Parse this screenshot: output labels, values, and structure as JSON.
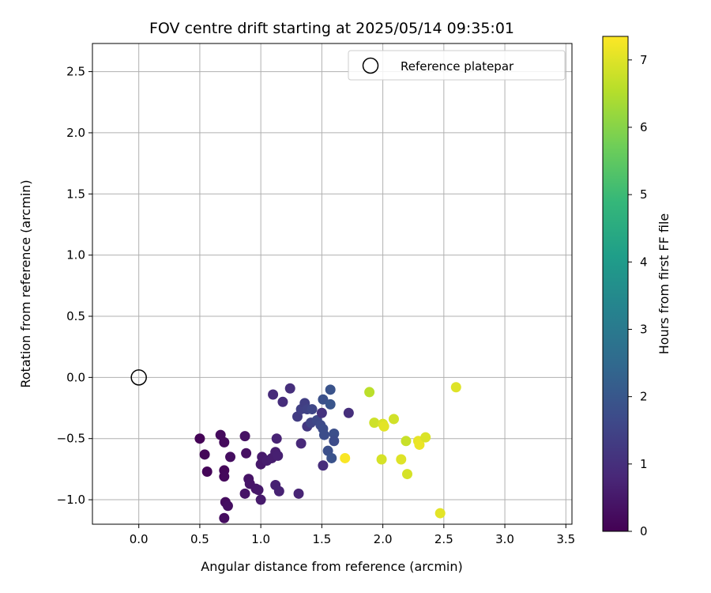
{
  "chart_data": {
    "type": "scatter",
    "title": "FOV centre drift starting at 2025/05/14 09:35:01",
    "xlabel": "Angular distance from reference (arcmin)",
    "ylabel": "Rotation from reference (arcmin)",
    "xlim": [
      -0.38,
      3.55
    ],
    "ylim": [
      -1.2,
      2.73
    ],
    "x_ticks": [
      "0.0",
      "0.5",
      "1.0",
      "1.5",
      "2.0",
      "2.5",
      "3.0",
      "3.5"
    ],
    "y_ticks": [
      "−1.0",
      "−0.5",
      "0.0",
      "0.5",
      "1.0",
      "1.5",
      "2.0",
      "2.5"
    ],
    "grid": true,
    "legend": {
      "placement": "top-right",
      "label": "Reference platepar",
      "marker": "open-circle"
    },
    "reference_point": {
      "x": 0.0,
      "y": 0.0
    },
    "colorbar": {
      "label": "Hours from first FF file",
      "range": [
        0,
        7.35
      ],
      "ticks": [
        "0",
        "1",
        "2",
        "3",
        "4",
        "5",
        "6",
        "7"
      ],
      "colormap": "viridis",
      "colors": [
        "#440154",
        "#482878",
        "#3e4989",
        "#31688e",
        "#26828e",
        "#1f9e89",
        "#35b779",
        "#6ece58",
        "#b5de2b",
        "#fde725"
      ]
    },
    "series": [
      {
        "points": [
          [
            0.5,
            -0.5,
            0.05
          ],
          [
            0.54,
            -0.63,
            0.1
          ],
          [
            0.56,
            -0.77,
            0.08
          ],
          [
            0.67,
            -0.47,
            0.2
          ],
          [
            0.7,
            -0.53,
            0.18
          ],
          [
            0.7,
            -0.76,
            0.12
          ],
          [
            0.7,
            -0.81,
            0.15
          ],
          [
            0.7,
            -1.15,
            0.25
          ],
          [
            0.71,
            -1.02,
            0.22
          ],
          [
            0.73,
            -1.05,
            0.3
          ],
          [
            0.75,
            -0.65,
            0.28
          ],
          [
            0.87,
            -0.48,
            0.35
          ],
          [
            0.88,
            -0.62,
            0.32
          ],
          [
            0.87,
            -0.95,
            0.4
          ],
          [
            0.9,
            -0.83,
            0.38
          ],
          [
            0.91,
            -0.87,
            0.42
          ],
          [
            0.96,
            -0.91,
            0.45
          ],
          [
            0.98,
            -0.92,
            0.48
          ],
          [
            1.0,
            -0.71,
            0.5
          ],
          [
            1.01,
            -0.65,
            0.52
          ],
          [
            1.0,
            -1.0,
            0.55
          ],
          [
            1.05,
            -0.68,
            0.58
          ],
          [
            1.09,
            -0.66,
            0.6
          ],
          [
            1.12,
            -0.61,
            0.62
          ],
          [
            1.14,
            -0.64,
            0.65
          ],
          [
            1.12,
            -0.88,
            0.68
          ],
          [
            1.15,
            -0.93,
            0.7
          ],
          [
            1.13,
            -0.5,
            0.72
          ],
          [
            1.1,
            -0.14,
            0.9
          ],
          [
            1.18,
            -0.2,
            0.95
          ],
          [
            1.24,
            -0.09,
            1.0
          ],
          [
            1.31,
            -0.95,
            0.75
          ],
          [
            1.33,
            -0.54,
            0.85
          ],
          [
            1.3,
            -0.32,
            1.3
          ],
          [
            1.33,
            -0.26,
            1.4
          ],
          [
            1.36,
            -0.21,
            1.35
          ],
          [
            1.38,
            -0.4,
            1.2
          ],
          [
            1.38,
            -0.26,
            1.45
          ],
          [
            1.41,
            -0.37,
            1.5
          ],
          [
            1.42,
            -0.26,
            1.55
          ],
          [
            1.46,
            -0.35,
            1.6
          ],
          [
            1.49,
            -0.39,
            1.65
          ],
          [
            1.5,
            -0.29,
            1.1
          ],
          [
            1.51,
            -0.42,
            1.7
          ],
          [
            1.52,
            -0.47,
            1.75
          ],
          [
            1.51,
            -0.72,
            0.95
          ],
          [
            1.51,
            -0.18,
            1.85
          ],
          [
            1.55,
            -0.6,
            1.8
          ],
          [
            1.57,
            -0.1,
            1.9
          ],
          [
            1.57,
            -0.22,
            1.95
          ],
          [
            1.58,
            -0.66,
            1.88
          ],
          [
            1.6,
            -0.46,
            1.78
          ],
          [
            1.6,
            -0.52,
            1.72
          ],
          [
            1.72,
            -0.29,
            1.0
          ],
          [
            1.69,
            -0.66,
            7.3
          ],
          [
            1.89,
            -0.12,
            6.6
          ],
          [
            1.93,
            -0.37,
            6.8
          ],
          [
            1.99,
            -0.67,
            6.9
          ],
          [
            2.0,
            -0.38,
            6.95
          ],
          [
            2.01,
            -0.4,
            7.05
          ],
          [
            2.09,
            -0.34,
            6.85
          ],
          [
            2.15,
            -0.67,
            7.0
          ],
          [
            2.19,
            -0.52,
            6.75
          ],
          [
            2.2,
            -0.79,
            6.9
          ],
          [
            2.29,
            -0.52,
            7.1
          ],
          [
            2.3,
            -0.55,
            7.15
          ],
          [
            2.35,
            -0.49,
            6.95
          ],
          [
            2.47,
            -1.11,
            7.05
          ],
          [
            2.6,
            -0.08,
            7.0
          ]
        ]
      }
    ]
  }
}
